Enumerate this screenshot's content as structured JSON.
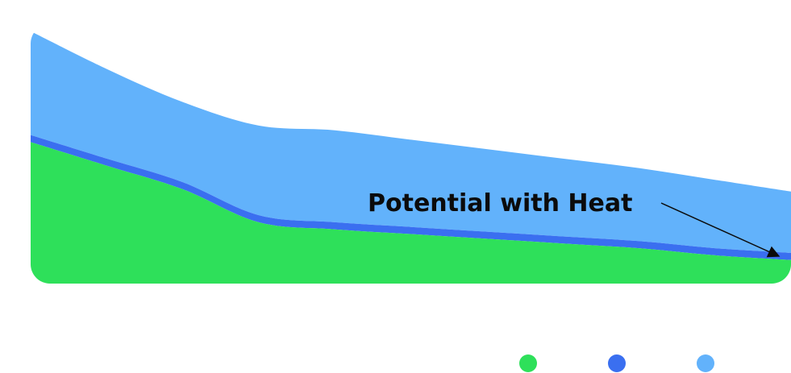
{
  "chart_data": {
    "type": "area",
    "stacked": true,
    "x": [
      0,
      1,
      2,
      3,
      4,
      5,
      6,
      7,
      8,
      9,
      10
    ],
    "series": [
      {
        "color": "#2ee05a",
        "values": [
          0.6,
          0.5,
          0.4,
          0.26,
          0.23,
          0.21,
          0.19,
          0.17,
          0.15,
          0.12,
          0.1
        ]
      },
      {
        "color": "#3a6ff0",
        "values": [
          0.03,
          0.03,
          0.03,
          0.03,
          0.03,
          0.03,
          0.03,
          0.03,
          0.03,
          0.03,
          0.03
        ]
      },
      {
        "color": "#62b2fb",
        "values": [
          0.44,
          0.38,
          0.34,
          0.38,
          0.39,
          0.37,
          0.35,
          0.33,
          0.31,
          0.29,
          0.26
        ]
      }
    ],
    "ylim": [
      0,
      1.1
    ],
    "grid": false,
    "annotation": {
      "text": "Potential with Heat"
    },
    "legend": {
      "placement": "bottom-right",
      "show_labels": false
    }
  }
}
